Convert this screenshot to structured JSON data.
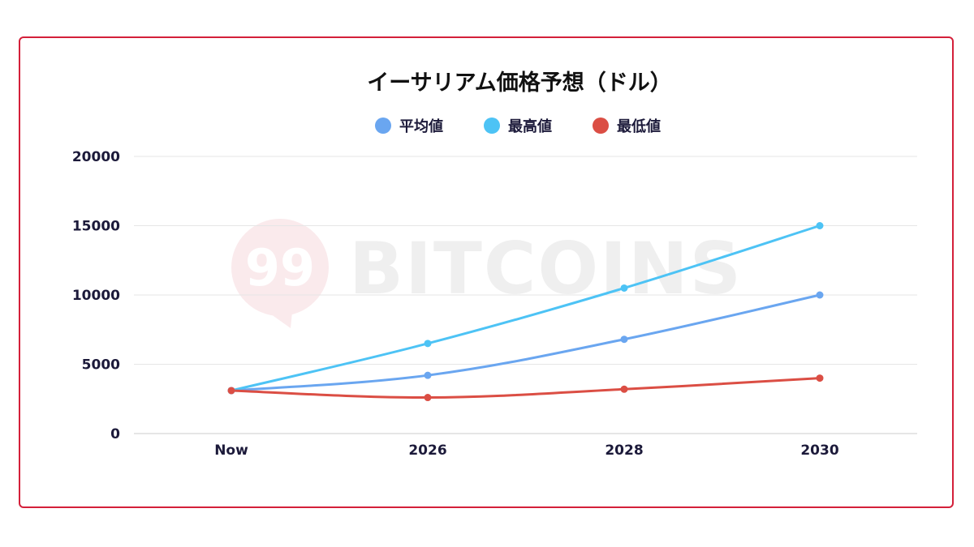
{
  "watermark": "99 BITCOINS",
  "chart_data": {
    "type": "line",
    "title": "イーサリアム価格予想（ドル）",
    "categories": [
      "Now",
      "2026",
      "2028",
      "2030"
    ],
    "series": [
      {
        "name": "平均値",
        "color": "#6aa6f0",
        "values": [
          3100,
          4200,
          6800,
          10000
        ]
      },
      {
        "name": "最高値",
        "color": "#4dc3f5",
        "values": [
          3100,
          6500,
          10500,
          15000
        ]
      },
      {
        "name": "最低値",
        "color": "#db4e44",
        "values": [
          3100,
          2600,
          3200,
          4000
        ]
      }
    ],
    "yticks": [
      "0",
      "5000",
      "10000",
      "15000",
      "20000"
    ],
    "ylim": [
      0,
      20000
    ],
    "grid": true,
    "legend": "top-center",
    "frame_color": "#d4203a"
  }
}
